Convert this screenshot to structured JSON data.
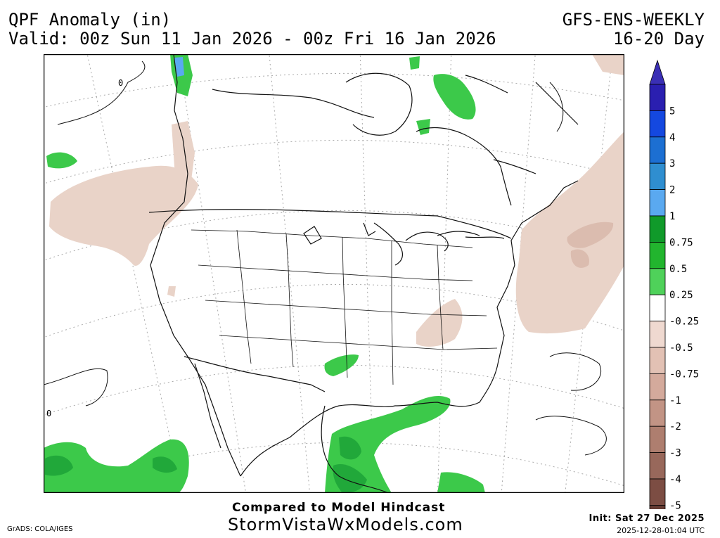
{
  "header": {
    "title": "QPF Anomaly (in)",
    "valid": "Valid: 00z Sun 11 Jan 2026 - 00z Fri 16 Jan 2026",
    "model": "GFS-ENS-WEEKLY",
    "period": "16-20 Day"
  },
  "legend": {
    "labels": [
      "5",
      "4",
      "3",
      "2",
      "1",
      "0.75",
      "0.5",
      "0.25",
      "-0.25",
      "-0.5",
      "-0.75",
      "-1",
      "-2",
      "-3",
      "-4",
      "-5"
    ],
    "colors": [
      "#2a1fb0",
      "#1448e0",
      "#1c6fd2",
      "#2f8ed0",
      "#5aa9f0",
      "#109a2a",
      "#22b52e",
      "#4fd15a",
      "#ffffff",
      "#efd9d0",
      "#e2c1b4",
      "#d4aa9c",
      "#c29485",
      "#ae7e6f",
      "#98685b",
      "#7c4d43",
      "#633a32"
    ],
    "top_arrow_color": "#3a2fb5",
    "bottom_arrow_color": "#5a3029"
  },
  "footer": {
    "compared": "Compared to Model Hindcast",
    "site": "StormVistaWxModels.com",
    "grads": "GrADS: COLA/IGES",
    "init": "Init: Sat 27 Dec 2025",
    "stamp": "2025-12-28-01:04 UTC"
  },
  "map": {
    "palette": {
      "wet": "#3cc94a",
      "wet_dark": "#21a83a",
      "dry": "#e9d3c8",
      "dry_dark": "#dbbcaf",
      "coast": "#111111",
      "graticule": "#aaaaaa"
    },
    "contour_label": "0"
  }
}
